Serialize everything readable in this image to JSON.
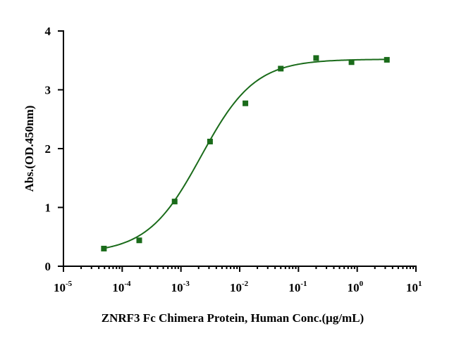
{
  "chart_data": {
    "type": "scatter",
    "title": "",
    "xlabel": "ZNRF3 Fc Chimera Protein, Human Conc.(μg/mL)",
    "ylabel": "Abs.(OD.450nm)",
    "x_scale": "log",
    "xlim": [
      1e-05,
      10
    ],
    "ylim": [
      0,
      4
    ],
    "x_ticks": [
      {
        "base": "10",
        "exp": "-5",
        "value": 1e-05
      },
      {
        "base": "10",
        "exp": "-4",
        "value": 0.0001
      },
      {
        "base": "10",
        "exp": "-3",
        "value": 0.001
      },
      {
        "base": "10",
        "exp": "-2",
        "value": 0.01
      },
      {
        "base": "10",
        "exp": "-1",
        "value": 0.1
      },
      {
        "base": "10",
        "exp": "0",
        "value": 1
      },
      {
        "base": "10",
        "exp": "1",
        "value": 10
      }
    ],
    "y_ticks": [
      {
        "label": "0",
        "value": 0
      },
      {
        "label": "1",
        "value": 1
      },
      {
        "label": "2",
        "value": 2
      },
      {
        "label": "3",
        "value": 3
      },
      {
        "label": "4",
        "value": 4
      }
    ],
    "series": [
      {
        "color": "#1a6b1a",
        "marker": "square",
        "x": [
          4.88e-05,
          0.000195,
          0.000781,
          0.003125,
          0.0125,
          0.05,
          0.2,
          0.8,
          3.2
        ],
        "y": [
          0.3,
          0.44,
          1.1,
          2.12,
          2.77,
          3.36,
          3.54,
          3.47,
          3.51
        ],
        "fit_curve": "4PL"
      }
    ],
    "grid": false,
    "legend": "none"
  }
}
